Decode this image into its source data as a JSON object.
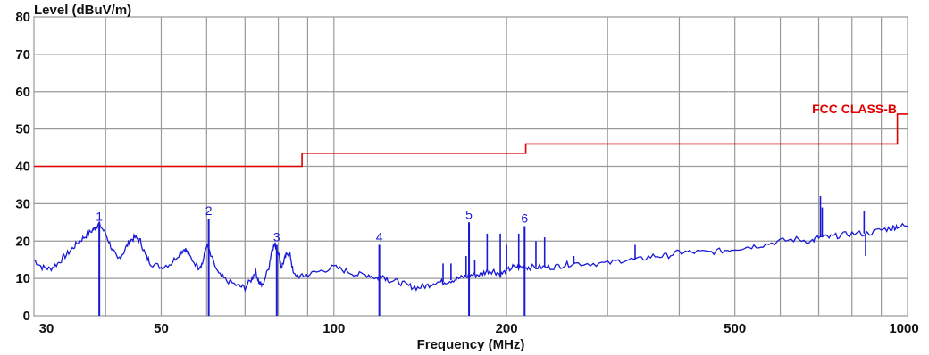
{
  "chart_data": {
    "type": "line",
    "ylabel": "Level (dBuV/m)",
    "xlabel": "Frequency (MHz)",
    "x_scale": "log",
    "xlim": [
      30,
      1000
    ],
    "ylim": [
      0,
      80
    ],
    "grid": true,
    "x_ticks": [
      30,
      50,
      100,
      200,
      500,
      1000
    ],
    "x_gridlines": [
      30,
      40,
      50,
      60,
      70,
      80,
      90,
      100,
      200,
      300,
      400,
      500,
      600,
      700,
      800,
      900,
      1000
    ],
    "y_ticks": [
      0,
      10,
      20,
      30,
      40,
      50,
      60,
      70,
      80
    ],
    "limit_line": {
      "name": "FCC CLASS-B",
      "color": "#e00000",
      "points": [
        [
          30,
          40
        ],
        [
          88,
          40
        ],
        [
          88,
          43.5
        ],
        [
          216,
          43.5
        ],
        [
          216,
          46
        ],
        [
          960,
          46
        ],
        [
          960,
          54
        ],
        [
          1000,
          54
        ]
      ]
    },
    "trace": {
      "color": "#1a1ad6",
      "points": [
        [
          30,
          15
        ],
        [
          31,
          13
        ],
        [
          32,
          12.5
        ],
        [
          33,
          14
        ],
        [
          34,
          16
        ],
        [
          35,
          18
        ],
        [
          36,
          20
        ],
        [
          37,
          21.5
        ],
        [
          38,
          23
        ],
        [
          38.5,
          24
        ],
        [
          39,
          24.5
        ],
        [
          40,
          22
        ],
        [
          41,
          18
        ],
        [
          42,
          15
        ],
        [
          43,
          17
        ],
        [
          44,
          20
        ],
        [
          45,
          21
        ],
        [
          46,
          20
        ],
        [
          47,
          16
        ],
        [
          48,
          14
        ],
        [
          50,
          13
        ],
        [
          52,
          14
        ],
        [
          54,
          17
        ],
        [
          55,
          18
        ],
        [
          56,
          16
        ],
        [
          58,
          13
        ],
        [
          59,
          14
        ],
        [
          60,
          19
        ],
        [
          61,
          16
        ],
        [
          63,
          11
        ],
        [
          65,
          9.5
        ],
        [
          68,
          8
        ],
        [
          70,
          7.5
        ],
        [
          72,
          10
        ],
        [
          73,
          12
        ],
        [
          74,
          9
        ],
        [
          75,
          8
        ],
        [
          77,
          13
        ],
        [
          78,
          18
        ],
        [
          79,
          19
        ],
        [
          80,
          17
        ],
        [
          81,
          13
        ],
        [
          82,
          15
        ],
        [
          83,
          17
        ],
        [
          84,
          16
        ],
        [
          85,
          11
        ],
        [
          88,
          10.5
        ],
        [
          90,
          11
        ],
        [
          95,
          12
        ],
        [
          100,
          13
        ],
        [
          105,
          12
        ],
        [
          110,
          11
        ],
        [
          115,
          11
        ],
        [
          119,
          10
        ],
        [
          121,
          11
        ],
        [
          125,
          9.5
        ],
        [
          130,
          9
        ],
        [
          135,
          8
        ],
        [
          140,
          7.5
        ],
        [
          145,
          8
        ],
        [
          150,
          9
        ],
        [
          155,
          9
        ],
        [
          160,
          9.5
        ],
        [
          165,
          10
        ],
        [
          170,
          10.5
        ],
        [
          175,
          11
        ],
        [
          180,
          11
        ],
        [
          185,
          12
        ],
        [
          190,
          12
        ],
        [
          195,
          11
        ],
        [
          200,
          12
        ],
        [
          205,
          13
        ],
        [
          210,
          13
        ],
        [
          215,
          13
        ],
        [
          220,
          13
        ],
        [
          230,
          13
        ],
        [
          240,
          13
        ],
        [
          250,
          13.5
        ],
        [
          260,
          14
        ],
        [
          280,
          14
        ],
        [
          300,
          14
        ],
        [
          320,
          15
        ],
        [
          340,
          15
        ],
        [
          360,
          16
        ],
        [
          380,
          16
        ],
        [
          400,
          17
        ],
        [
          420,
          17
        ],
        [
          450,
          17
        ],
        [
          480,
          17.5
        ],
        [
          500,
          18
        ],
        [
          530,
          18.5
        ],
        [
          560,
          19
        ],
        [
          600,
          20
        ],
        [
          640,
          20.5
        ],
        [
          680,
          20
        ],
        [
          700,
          21
        ],
        [
          730,
          21
        ],
        [
          760,
          21.5
        ],
        [
          800,
          22
        ],
        [
          850,
          22
        ],
        [
          900,
          23
        ],
        [
          940,
          23.5
        ],
        [
          960,
          24
        ],
        [
          1000,
          24
        ]
      ]
    },
    "spikes": [
      [
        39,
        0
      ],
      [
        60.5,
        26
      ],
      [
        79.5,
        0
      ],
      [
        120,
        19
      ],
      [
        172,
        25
      ],
      [
        215,
        24
      ],
      [
        155,
        14
      ],
      [
        160,
        14
      ],
      [
        170,
        16
      ],
      [
        176,
        15
      ],
      [
        185,
        22
      ],
      [
        195,
        22
      ],
      [
        200,
        19
      ],
      [
        210,
        22
      ],
      [
        225,
        20
      ],
      [
        233,
        21
      ],
      [
        262,
        16
      ],
      [
        335,
        19
      ],
      [
        705,
        32
      ],
      [
        710,
        29
      ],
      [
        840,
        28
      ],
      [
        845,
        16
      ]
    ],
    "markers": [
      {
        "label": "1",
        "x": 39,
        "y": 24.5,
        "drop_to_zero": true
      },
      {
        "label": "2",
        "x": 60.5,
        "y": 26,
        "drop_to_zero": true
      },
      {
        "label": "3",
        "x": 79.5,
        "y": 19,
        "drop_to_zero": true
      },
      {
        "label": "4",
        "x": 120,
        "y": 19,
        "drop_to_zero": true
      },
      {
        "label": "5",
        "x": 172,
        "y": 25,
        "drop_to_zero": true
      },
      {
        "label": "6",
        "x": 215,
        "y": 24,
        "drop_to_zero": true
      }
    ]
  }
}
